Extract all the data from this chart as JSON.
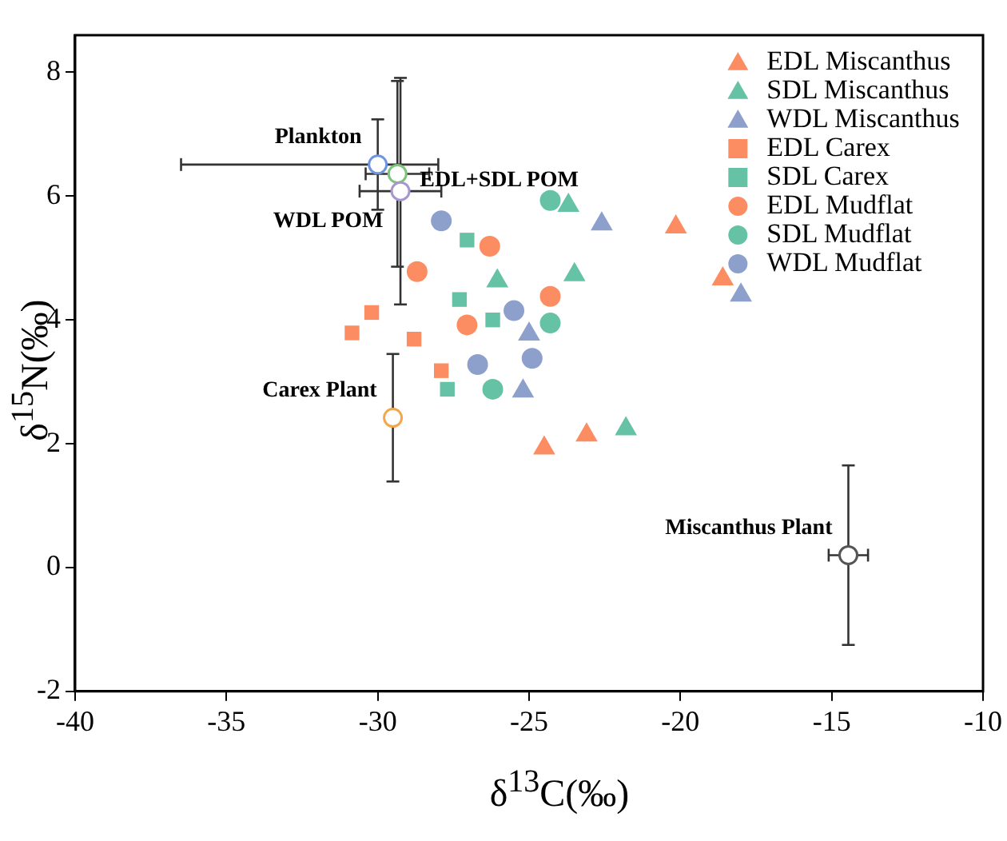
{
  "chart_data": {
    "type": "scatter",
    "xlabel": "δ$^{13}$C(‰)",
    "ylabel": "δ$^{15}$N(‰)",
    "xlim": [
      -40,
      -10
    ],
    "xticks": [
      -40,
      -35,
      -30,
      -25,
      -20,
      -15,
      -10
    ],
    "ylim": [
      -2,
      8.6
    ],
    "yticks": [
      -2,
      0,
      2,
      4,
      6,
      8
    ],
    "grid": false,
    "legend": "top right",
    "series": [
      {
        "name": "EDL Miscanthus",
        "color": "#fc8d62",
        "marker": "triangle",
        "x": [
          -20.15,
          -18.6,
          -23.1,
          -24.5
        ],
        "values": [
          5.5,
          4.66,
          2.14,
          1.93
        ]
      },
      {
        "name": "SDL Miscanthus",
        "color": "#66c2a5",
        "marker": "triangle",
        "x": [
          -23.7,
          -23.5,
          -26.05,
          -21.8
        ],
        "values": [
          5.85,
          4.73,
          4.63,
          2.24
        ]
      },
      {
        "name": "WDL Miscanthus",
        "color": "#8da0cb",
        "marker": "triangle",
        "x": [
          -22.6,
          -18.0,
          -25.0,
          -25.2
        ],
        "values": [
          5.55,
          4.4,
          3.77,
          2.85
        ]
      },
      {
        "name": "EDL Carex",
        "color": "#fc8d62",
        "marker": "square",
        "x": [
          -30.2,
          -30.85,
          -28.8,
          -27.9
        ],
        "values": [
          4.12,
          3.79,
          3.69,
          3.18
        ]
      },
      {
        "name": "SDL Carex",
        "color": "#66c2a5",
        "marker": "square",
        "x": [
          -27.05,
          -27.3,
          -26.2,
          -27.7
        ],
        "values": [
          5.29,
          4.33,
          4.0,
          2.88
        ]
      },
      {
        "name": "EDL Mudflat",
        "color": "#fc8d62",
        "marker": "circle",
        "x": [
          -26.3,
          -28.7,
          -24.3,
          -27.05
        ],
        "values": [
          5.19,
          4.78,
          4.38,
          3.92
        ]
      },
      {
        "name": "SDL Mudflat",
        "color": "#66c2a5",
        "marker": "circle",
        "x": [
          -24.3,
          -24.3,
          -26.2
        ],
        "values": [
          5.93,
          3.95,
          2.88
        ]
      },
      {
        "name": "WDL Mudflat",
        "color": "#8da0cb",
        "marker": "circle",
        "x": [
          -27.9,
          -25.5,
          -26.7,
          -24.9
        ],
        "values": [
          5.6,
          4.15,
          3.28,
          3.38
        ]
      },
      {
        "colors": [
          "#6f95e0",
          "#7cc47a",
          "#a896d0",
          "#f0a850",
          "#555555"
        ],
        "marker": "circle",
        "x": [
          -30.0,
          -29.35,
          -29.25,
          -29.5,
          -14.45
        ],
        "values": [
          6.51,
          6.36,
          6.08,
          2.42,
          0.2
        ],
        "errors": [
          0.73,
          1.5,
          1.83,
          1.03,
          1.45
        ],
        "xerrors": [
          [
            -36.5,
            -28.0
          ],
          1.05,
          1.35,
          null,
          0.65
        ]
      }
    ],
    "annotations": [
      {
        "text": "Plankton",
        "x": -30.0,
        "y": 6.51
      },
      {
        "text": "EDL+SDL POM",
        "x": -29.35,
        "y": 6.36
      },
      {
        "text": "WDL POM",
        "x": -29.25,
        "y": 6.08
      },
      {
        "text": "Carex Plant",
        "x": -29.5,
        "y": 2.42
      },
      {
        "text": "Miscanthus Plant",
        "x": -14.45,
        "y": 0.2
      }
    ]
  }
}
